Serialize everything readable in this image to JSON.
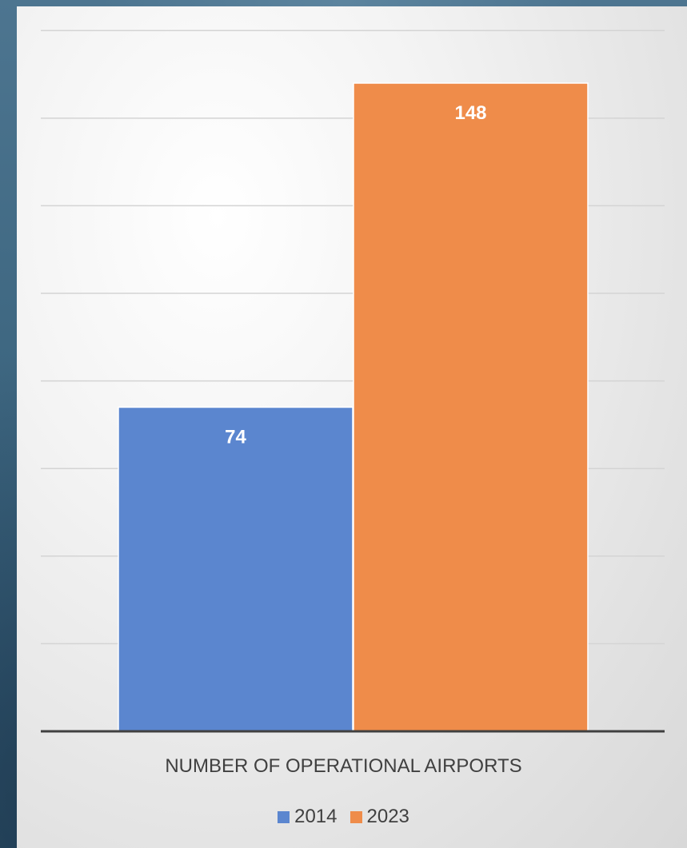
{
  "chart_data": {
    "type": "bar",
    "categories": [
      "NUMBER OF OPERATIONAL AIRPORTS"
    ],
    "series": [
      {
        "name": "2014",
        "values": [
          74
        ],
        "color": "#5b86cf"
      },
      {
        "name": "2023",
        "values": [
          148
        ],
        "color": "#ef8c4a"
      }
    ],
    "xlabel": "NUMBER OF OPERATIONAL AIRPORTS",
    "ylim": [
      0,
      160
    ],
    "gridlines": true,
    "data_labels": true,
    "legend_position": "bottom"
  }
}
